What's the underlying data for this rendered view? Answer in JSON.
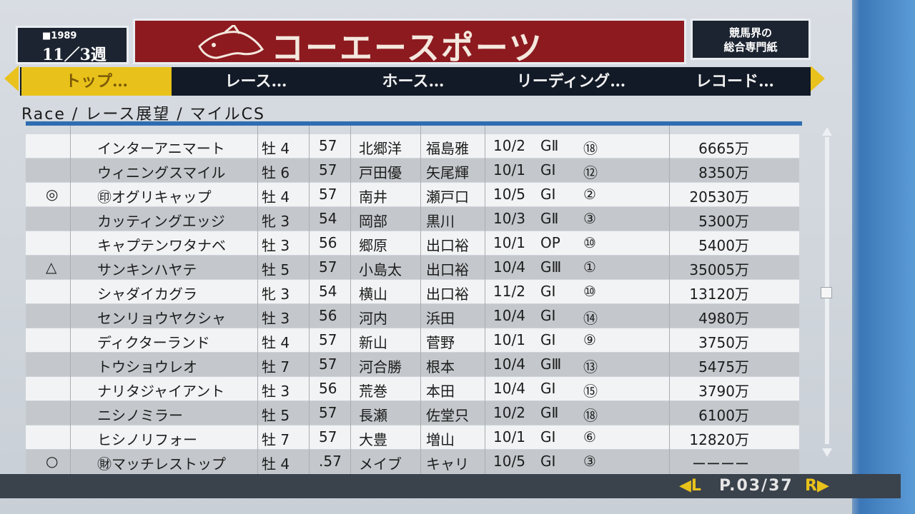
{
  "header": {
    "year": "■1989",
    "date_week": "11／3週",
    "title": "コーエースポーツ",
    "tagline_1": "競馬界の",
    "tagline_2": "総合専門紙"
  },
  "nav": {
    "tabs": [
      "トップ…",
      "レース…",
      "ホース…",
      "リーディング…",
      "レコード…"
    ],
    "active_index": 0
  },
  "breadcrumb": "Race / レース展望 / マイルCS",
  "table": {
    "rows": [
      {
        "mark": "",
        "name": "インターアニマート",
        "sex_age": "牡 4",
        "weight": "57",
        "jockey": "北郷洋",
        "trainer": "福島雅",
        "date": "10/2",
        "grade": "GⅡ",
        "rank": "⑱",
        "prize": "6665万"
      },
      {
        "mark": "",
        "name": "ウィニングスマイル",
        "sex_age": "牡 6",
        "weight": "57",
        "jockey": "戸田優",
        "trainer": "矢尾輝",
        "date": "10/1",
        "grade": "GⅠ",
        "rank": "⑫",
        "prize": "8350万"
      },
      {
        "mark": "◎",
        "name": "㊞オグリキャップ",
        "sex_age": "牡 4",
        "weight": "57",
        "jockey": "南井",
        "trainer": "瀬戸口",
        "date": "10/5",
        "grade": "GⅠ",
        "rank": "②",
        "prize": "20530万"
      },
      {
        "mark": "",
        "name": "カッティングエッジ",
        "sex_age": "牝 3",
        "weight": "54",
        "jockey": "岡部",
        "trainer": "黒川",
        "date": "10/3",
        "grade": "GⅡ",
        "rank": "③",
        "prize": "5300万"
      },
      {
        "mark": "",
        "name": "キャプテンワタナベ",
        "sex_age": "牡 3",
        "weight": "56",
        "jockey": "郷原",
        "trainer": "出口裕",
        "date": "10/1",
        "grade": "OP",
        "rank": "⑩",
        "prize": "5400万"
      },
      {
        "mark": "△",
        "name": "サンキンハヤテ",
        "sex_age": "牡 5",
        "weight": "57",
        "jockey": "小島太",
        "trainer": "出口裕",
        "date": "10/4",
        "grade": "GⅢ",
        "rank": "①",
        "prize": "35005万"
      },
      {
        "mark": "",
        "name": "シャダイカグラ",
        "sex_age": "牝 3",
        "weight": "54",
        "jockey": "横山",
        "trainer": "出口裕",
        "date": "11/2",
        "grade": "GⅠ",
        "rank": "⑩",
        "prize": "13120万"
      },
      {
        "mark": "",
        "name": "センリョウヤクシャ",
        "sex_age": "牡 3",
        "weight": "56",
        "jockey": "河内",
        "trainer": "浜田",
        "date": "10/4",
        "grade": "GⅠ",
        "rank": "⑭",
        "prize": "4980万"
      },
      {
        "mark": "",
        "name": "ディクターランド",
        "sex_age": "牡 4",
        "weight": "57",
        "jockey": "新山",
        "trainer": "菅野",
        "date": "10/1",
        "grade": "GⅠ",
        "rank": "⑨",
        "prize": "3750万"
      },
      {
        "mark": "",
        "name": "トウショウレオ",
        "sex_age": "牡 7",
        "weight": "57",
        "jockey": "河合勝",
        "trainer": "根本",
        "date": "10/4",
        "grade": "GⅢ",
        "rank": "⑬",
        "prize": "5475万"
      },
      {
        "mark": "",
        "name": "ナリタジャイアント",
        "sex_age": "牡 3",
        "weight": "56",
        "jockey": "荒巻",
        "trainer": "本田",
        "date": "10/4",
        "grade": "GⅠ",
        "rank": "⑮",
        "prize": "3790万"
      },
      {
        "mark": "",
        "name": "ニシノミラー",
        "sex_age": "牡 5",
        "weight": "57",
        "jockey": "長瀬",
        "trainer": "佐堂只",
        "date": "10/2",
        "grade": "GⅡ",
        "rank": "⑱",
        "prize": "6100万"
      },
      {
        "mark": "",
        "name": "ヒシノリフォー",
        "sex_age": "牡 7",
        "weight": "57",
        "jockey": "大豊",
        "trainer": "増山",
        "date": "10/1",
        "grade": "GⅠ",
        "rank": "⑥",
        "prize": "12820万"
      },
      {
        "mark": "○",
        "name": "㊖マッチレストップ",
        "sex_age": "牡 4",
        "weight": ".57",
        "jockey": "メイブ",
        "trainer": "キャリ",
        "date": "10/5",
        "grade": "GⅠ",
        "rank": "③",
        "prize": "ーーーー"
      }
    ]
  },
  "footer": {
    "left_key": "◀L",
    "page": "P.03/37",
    "right_key": "R▶"
  },
  "colors": {
    "title_red": "#8d1a1f",
    "nav_active": "#e8c21a",
    "nav_bg": "#121a27",
    "table_header": "#2f6db0"
  }
}
